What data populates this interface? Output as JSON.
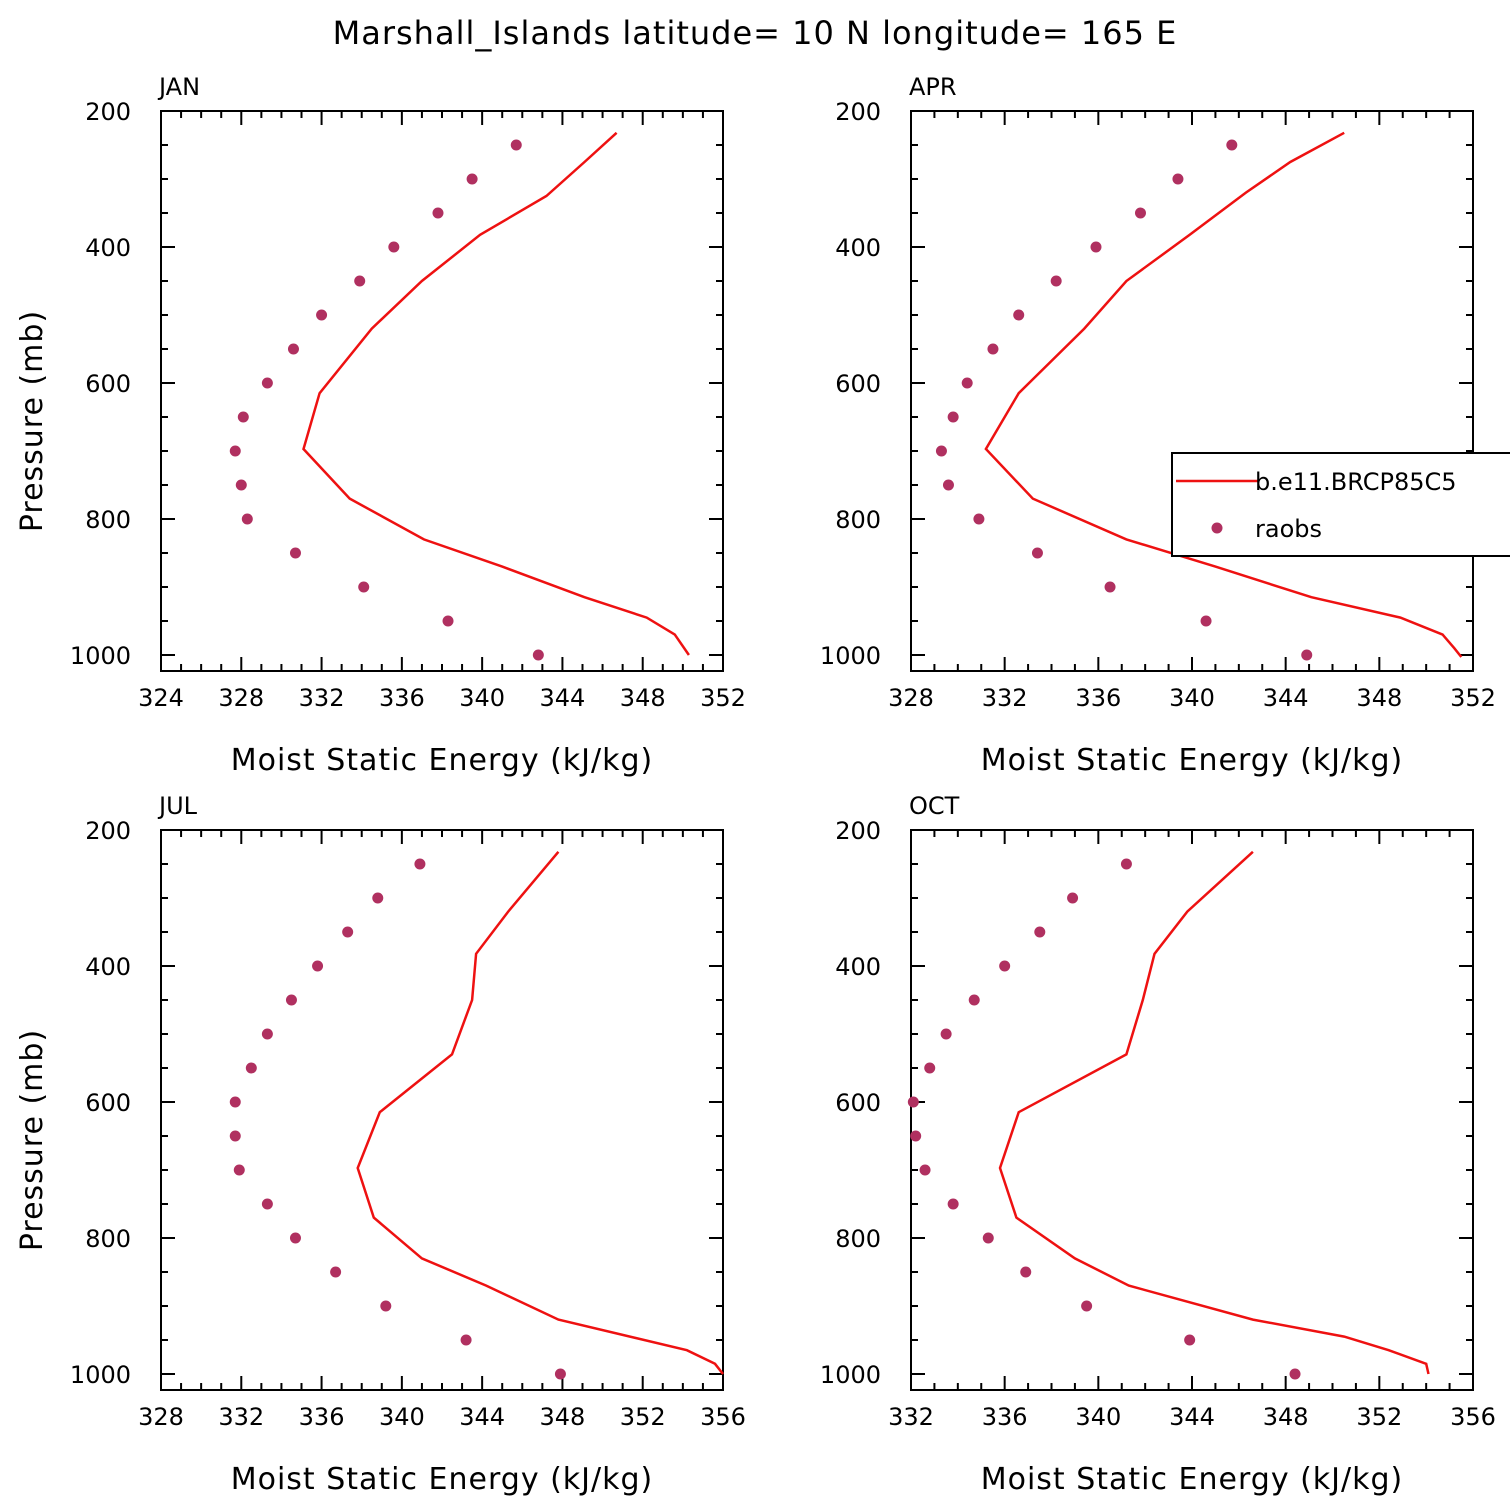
{
  "title": "Marshall_Islands  latitude= 10 N longitude= 165 E",
  "colors": {
    "model_line": "#ee1111",
    "raobs_marker": "#b03060",
    "axes": "#000000"
  },
  "legend": {
    "items": [
      "b.e11.BRCP85C5",
      "raobs"
    ]
  },
  "chart_data": [
    {
      "type": "line",
      "panel_label": "JAN",
      "xlabel": "Moist Static Energy (kJ/kg)",
      "ylabel": "Pressure (mb)",
      "xlim": [
        324,
        352
      ],
      "ylim": [
        1025,
        200
      ],
      "xticks": [
        324,
        328,
        332,
        336,
        340,
        344,
        348,
        352
      ],
      "yticks": [
        200,
        400,
        600,
        800,
        1000
      ],
      "series": [
        {
          "name": "b.e11.BRCP85C5",
          "kind": "line",
          "x": [
            346.7,
            345.1,
            343.2,
            339.9,
            337.0,
            334.5,
            331.9,
            331.1,
            333.4,
            337.1,
            341.0,
            345.1,
            348.2,
            349.6,
            350.3
          ],
          "y": [
            232,
            275,
            325,
            382,
            450,
            520,
            615,
            697,
            770,
            830,
            870,
            915,
            945,
            970,
            1000
          ]
        },
        {
          "name": "raobs",
          "kind": "scatter",
          "x": [
            341.7,
            339.5,
            337.8,
            335.6,
            333.9,
            332.0,
            330.6,
            329.3,
            328.1,
            327.7,
            328.0,
            328.3,
            330.7,
            334.1,
            338.3,
            342.8
          ],
          "y": [
            250,
            300,
            350,
            400,
            450,
            500,
            550,
            600,
            650,
            700,
            750,
            800,
            850,
            900,
            950,
            1000
          ]
        }
      ]
    },
    {
      "type": "line",
      "panel_label": "APR",
      "xlabel": "Moist Static Energy (kJ/kg)",
      "ylabel": "",
      "xlim": [
        328,
        352
      ],
      "ylim": [
        1025,
        200
      ],
      "xticks": [
        328,
        332,
        336,
        340,
        344,
        348,
        352
      ],
      "yticks": [
        200,
        400,
        600,
        800,
        1000
      ],
      "series": [
        {
          "name": "b.e11.BRCP85C5",
          "kind": "line",
          "x": [
            346.5,
            344.2,
            342.3,
            339.9,
            337.2,
            335.4,
            332.6,
            331.2,
            333.2,
            337.2,
            341.0,
            345.1,
            348.9,
            350.7,
            351.2,
            351.5
          ],
          "y": [
            232,
            275,
            320,
            382,
            450,
            520,
            615,
            697,
            770,
            830,
            870,
            915,
            945,
            970,
            990,
            1003
          ]
        },
        {
          "name": "raobs",
          "kind": "scatter",
          "x": [
            341.7,
            339.4,
            337.8,
            335.9,
            334.2,
            332.6,
            331.5,
            330.4,
            329.8,
            329.3,
            329.6,
            330.9,
            333.4,
            336.5,
            340.6,
            344.9
          ],
          "y": [
            250,
            300,
            350,
            400,
            450,
            500,
            550,
            600,
            650,
            700,
            750,
            800,
            850,
            900,
            950,
            1000
          ]
        }
      ]
    },
    {
      "type": "line",
      "panel_label": "JUL",
      "xlabel": "Moist Static Energy (kJ/kg)",
      "ylabel": "Pressure (mb)",
      "xlim": [
        328,
        356
      ],
      "ylim": [
        1025,
        200
      ],
      "xticks": [
        328,
        332,
        336,
        340,
        344,
        348,
        352,
        356
      ],
      "yticks": [
        200,
        400,
        600,
        800,
        1000
      ],
      "series": [
        {
          "name": "b.e11.BRCP85C5",
          "kind": "line",
          "x": [
            347.8,
            345.3,
            343.7,
            343.5,
            342.5,
            338.9,
            337.8,
            338.6,
            341.0,
            344.2,
            347.8,
            354.2,
            355.6,
            356.0
          ],
          "y": [
            232,
            320,
            382,
            450,
            530,
            615,
            697,
            770,
            830,
            870,
            920,
            965,
            985,
            1000
          ]
        },
        {
          "name": "raobs",
          "kind": "scatter",
          "x": [
            340.9,
            338.8,
            337.3,
            335.8,
            334.5,
            333.3,
            332.5,
            331.7,
            331.7,
            331.9,
            333.3,
            334.7,
            336.7,
            339.2,
            343.2,
            347.9
          ],
          "y": [
            250,
            300,
            350,
            400,
            450,
            500,
            550,
            600,
            650,
            700,
            750,
            800,
            850,
            900,
            950,
            1000
          ]
        }
      ]
    },
    {
      "type": "line",
      "panel_label": "OCT",
      "xlabel": "Moist Static Energy (kJ/kg)",
      "ylabel": "",
      "xlim": [
        332,
        356
      ],
      "ylim": [
        1025,
        200
      ],
      "xticks": [
        332,
        336,
        340,
        344,
        348,
        352,
        356
      ],
      "yticks": [
        200,
        400,
        600,
        800,
        1000
      ],
      "series": [
        {
          "name": "b.e11.BRCP85C5",
          "kind": "line",
          "x": [
            346.6,
            343.8,
            342.4,
            341.9,
            341.2,
            336.6,
            335.8,
            336.5,
            339.0,
            341.3,
            346.6,
            350.5,
            352.4,
            354.0,
            354.1
          ],
          "y": [
            232,
            320,
            382,
            450,
            530,
            615,
            697,
            770,
            830,
            870,
            920,
            945,
            965,
            985,
            1000
          ]
        },
        {
          "name": "raobs",
          "kind": "scatter",
          "x": [
            341.2,
            338.9,
            337.5,
            336.0,
            334.7,
            333.5,
            332.8,
            332.1,
            332.2,
            332.6,
            333.8,
            335.3,
            336.9,
            339.5,
            343.9,
            348.4
          ],
          "y": [
            250,
            300,
            350,
            400,
            450,
            500,
            550,
            600,
            650,
            700,
            750,
            800,
            850,
            900,
            950,
            1000
          ]
        }
      ]
    }
  ]
}
